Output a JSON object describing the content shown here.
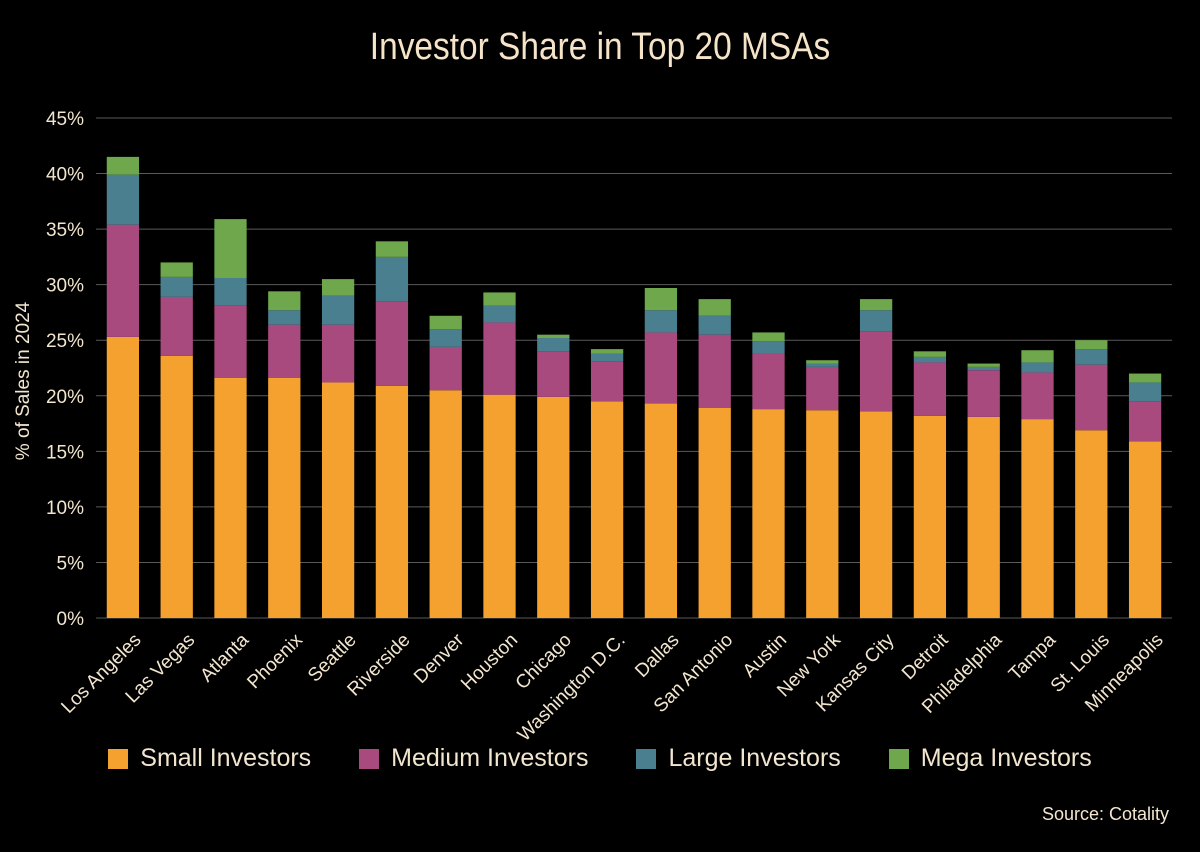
{
  "chart_data": {
    "type": "bar",
    "stacked": true,
    "title": "Investor Share in Top 20 MSAs",
    "ylabel": "% of Sales in 2024",
    "xlabel": "",
    "ylim": [
      0,
      45
    ],
    "yticks": [
      "0%",
      "5%",
      "10%",
      "15%",
      "20%",
      "25%",
      "30%",
      "35%",
      "40%",
      "45%"
    ],
    "grid": true,
    "legend_position": "bottom",
    "categories": [
      "Los Angeles",
      "Las Vegas",
      "Atlanta",
      "Phoenix",
      "Seattle",
      "Riverside",
      "Denver",
      "Houston",
      "Chicago",
      "Washington D.C.",
      "Dallas",
      "San Antonio",
      "Austin",
      "New York",
      "Kansas City",
      "Detroit",
      "Philadelphia",
      "Tampa",
      "St. Louis",
      "Minneapolis"
    ],
    "series": [
      {
        "name": "Small Investors",
        "color": "#f4a12f",
        "values": [
          25.3,
          23.6,
          21.6,
          21.6,
          21.2,
          20.9,
          20.5,
          20.1,
          19.9,
          19.5,
          19.3,
          18.9,
          18.8,
          18.7,
          18.6,
          18.2,
          18.1,
          17.9,
          16.9,
          15.9
        ]
      },
      {
        "name": "Medium Investors",
        "color": "#a84a7e",
        "values": [
          10.1,
          5.3,
          6.5,
          4.8,
          5.2,
          7.6,
          3.9,
          6.5,
          4.1,
          3.6,
          6.4,
          6.6,
          5.0,
          3.9,
          7.2,
          4.8,
          4.2,
          4.2,
          5.9,
          3.6
        ]
      },
      {
        "name": "Large Investors",
        "color": "#4a7f90",
        "values": [
          4.5,
          1.8,
          2.5,
          1.3,
          2.6,
          4.0,
          1.6,
          1.5,
          1.2,
          0.7,
          2.0,
          1.7,
          1.1,
          0.3,
          1.9,
          0.5,
          0.3,
          0.9,
          1.4,
          1.7
        ]
      },
      {
        "name": "Mega Investors",
        "color": "#6fa84c",
        "values": [
          1.6,
          1.3,
          5.3,
          1.7,
          1.5,
          1.4,
          1.2,
          1.2,
          0.3,
          0.4,
          2.0,
          1.5,
          0.8,
          0.3,
          1.0,
          0.5,
          0.3,
          1.1,
          0.8,
          0.8
        ]
      }
    ]
  },
  "source": "Source: Cotality",
  "colors": {
    "background": "#000000",
    "text": "#f3e6cf",
    "grid": "#5a5a5a"
  }
}
